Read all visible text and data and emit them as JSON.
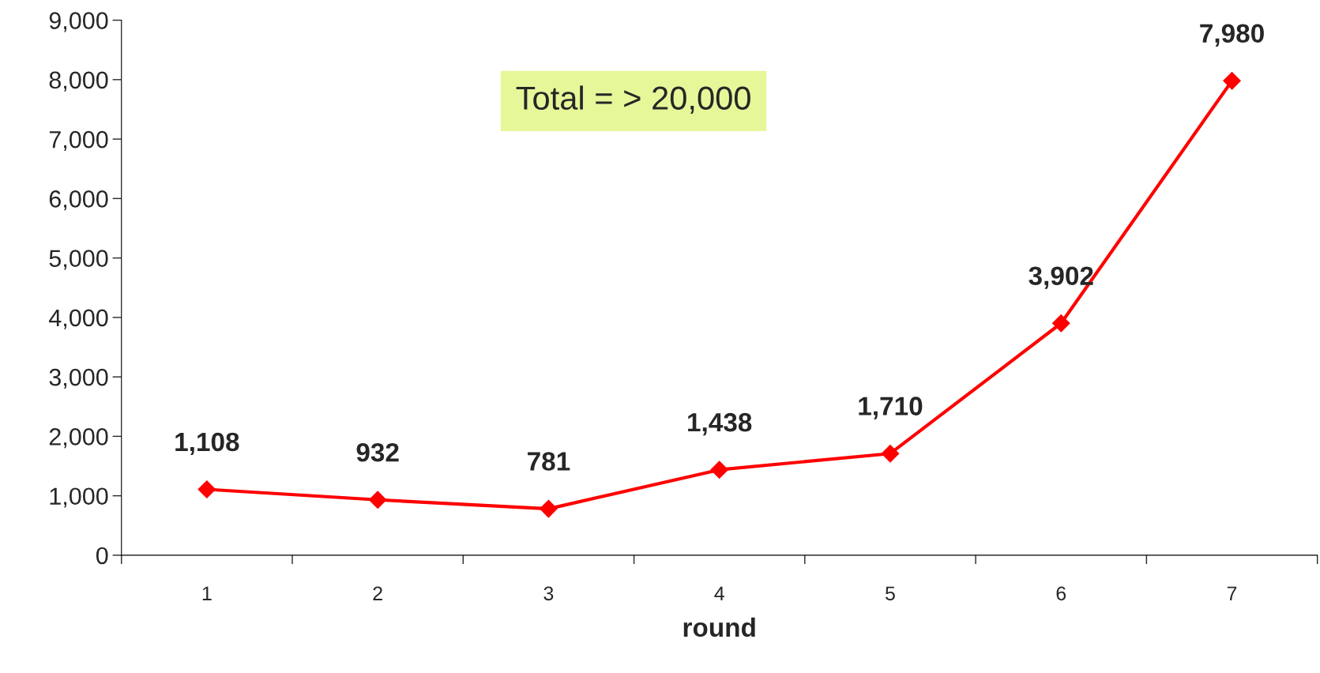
{
  "chart_data": {
    "type": "line",
    "xlabel": "round",
    "categories": [
      "1",
      "2",
      "3",
      "4",
      "5",
      "6",
      "7"
    ],
    "series": [
      {
        "color": "#ff0000",
        "values": [
          1108,
          932,
          781,
          1438,
          1710,
          3902,
          7980
        ]
      }
    ],
    "value_labels": [
      "1,108",
      "932",
      "781",
      "1,438",
      "1,710",
      "3,902",
      "7,980"
    ],
    "ylim": [
      0,
      9000
    ],
    "yticks": [
      {
        "value": 0,
        "label": "0"
      },
      {
        "value": 1000,
        "label": "1,000"
      },
      {
        "value": 2000,
        "label": "2,000"
      },
      {
        "value": 3000,
        "label": "3,000"
      },
      {
        "value": 4000,
        "label": "4,000"
      },
      {
        "value": 5000,
        "label": "5,000"
      },
      {
        "value": 6000,
        "label": "6,000"
      },
      {
        "value": 7000,
        "label": "7,000"
      },
      {
        "value": 8000,
        "label": "8,000"
      },
      {
        "value": 9000,
        "label": "9,000"
      }
    ],
    "annotations": [
      "Total = > 20,000"
    ],
    "marker": "diamond",
    "line_style": "solid",
    "grid": false,
    "legend": false
  }
}
